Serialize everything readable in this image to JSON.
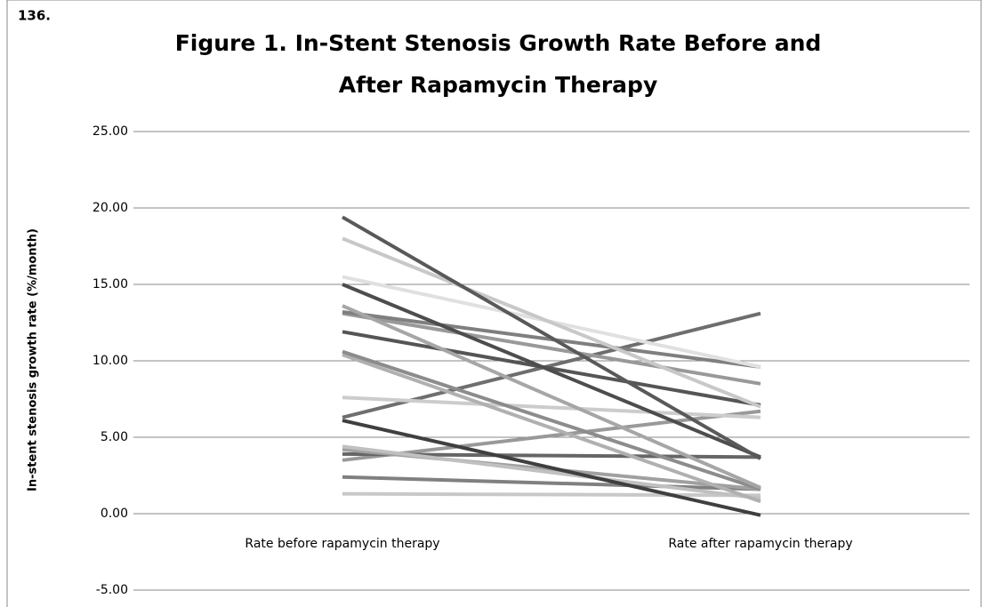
{
  "chart_data": {
    "type": "line",
    "annotation": "136.",
    "title": [
      "Figure 1. In-Stent Stenosis Growth Rate Before and",
      "After Rapamycin Therapy"
    ],
    "y_label": "In-stent stenosis growth rate (%/month)",
    "categories": [
      "Rate before rapamycin therapy",
      "Rate after rapamycin therapy"
    ],
    "ylim": [
      -5,
      25
    ],
    "yticks": [
      {
        "value": -5,
        "label": "-5.00"
      },
      {
        "value": 0,
        "label": "0.00"
      },
      {
        "value": 5,
        "label": "5.00"
      },
      {
        "value": 10,
        "label": "10.00"
      },
      {
        "value": 15,
        "label": "15.00"
      },
      {
        "value": 20,
        "label": "20.00"
      },
      {
        "value": 25,
        "label": "25.00"
      }
    ],
    "grid": true,
    "series": [
      {
        "color": "#c8c8c8",
        "values": [
          1.3,
          1.2
        ]
      },
      {
        "color": "#808080",
        "values": [
          2.4,
          1.6
        ]
      },
      {
        "color": "#999999",
        "values": [
          3.5,
          6.7
        ]
      },
      {
        "color": "#666666",
        "values": [
          3.9,
          3.7
        ]
      },
      {
        "color": "#a0a0a0",
        "values": [
          4.2,
          1.6
        ]
      },
      {
        "color": "#c0c0c0",
        "values": [
          4.4,
          1.0
        ]
      },
      {
        "color": "#3f3f3f",
        "values": [
          6.1,
          -0.1
        ]
      },
      {
        "color": "#6e6e6e",
        "values": [
          6.3,
          13.1
        ]
      },
      {
        "color": "#cccccc",
        "values": [
          7.6,
          6.3
        ]
      },
      {
        "color": "#b0b0b0",
        "values": [
          10.4,
          0.8
        ]
      },
      {
        "color": "#8c8c8c",
        "values": [
          10.6,
          1.6
        ]
      },
      {
        "color": "#555555",
        "values": [
          11.9,
          7.1
        ]
      },
      {
        "color": "#999999",
        "values": [
          13.1,
          8.5
        ]
      },
      {
        "color": "#7f7f7f",
        "values": [
          13.2,
          9.6
        ]
      },
      {
        "color": "#a6a6a6",
        "values": [
          13.6,
          1.7
        ]
      },
      {
        "color": "#4d4d4d",
        "values": [
          15.0,
          3.7
        ]
      },
      {
        "color": "#e0e0e0",
        "values": [
          15.5,
          9.6
        ]
      },
      {
        "color": "#c8c8c8",
        "values": [
          18.0,
          7.0
        ]
      },
      {
        "color": "#595959",
        "values": [
          19.4,
          3.6
        ]
      }
    ]
  }
}
